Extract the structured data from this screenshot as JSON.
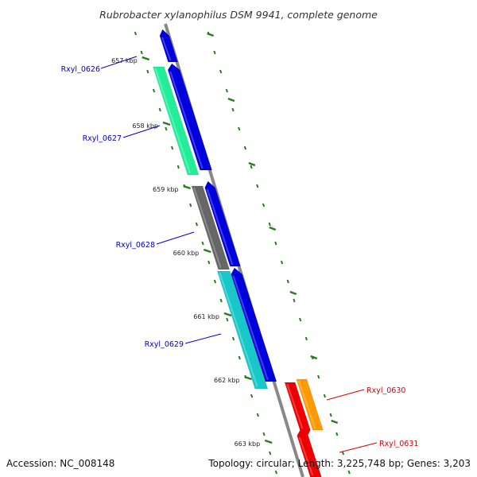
{
  "title": "Rubrobacter xylanophilus DSM 9941, complete genome",
  "footer": {
    "accession": "Accession: NC_008148",
    "topology": "Topology: circular; Length: 3,225,748 bp; Genes: 3,203"
  },
  "colors": {
    "backbone": "#888888",
    "tick_major": "#2a7a1e",
    "tick_minor": "#2a7a1e",
    "strand_forward": "#0000dd",
    "label_blue": "#0000cc",
    "label_red": "#dd0000"
  },
  "scale_ticks": [
    {
      "label": "657 kbp"
    },
    {
      "label": "658 kbp"
    },
    {
      "label": "659 kbp"
    },
    {
      "label": "660 kbp"
    },
    {
      "label": "661 kbp"
    },
    {
      "label": "662 kbp"
    },
    {
      "label": "663 kbp"
    }
  ],
  "gene_labels": [
    {
      "name": "Rxyl_0626",
      "color": "#0000cc"
    },
    {
      "name": "Rxyl_0627",
      "color": "#0000cc"
    },
    {
      "name": "Rxyl_0628",
      "color": "#0000cc"
    },
    {
      "name": "Rxyl_0629",
      "color": "#0000cc"
    },
    {
      "name": "Rxyl_0630",
      "color": "#dd0000"
    },
    {
      "name": "Rxyl_0631",
      "color": "#dd0000"
    }
  ],
  "features": [
    {
      "track": "forward-cds",
      "color": "#0000dd"
    },
    {
      "track": "forward-cds",
      "color": "#0000dd"
    },
    {
      "track": "forward-cds",
      "color": "#0000dd"
    },
    {
      "track": "forward-cds",
      "color": "#0000dd"
    },
    {
      "track": "gene-0627",
      "color": "#22ee99"
    },
    {
      "track": "gene-0628",
      "color": "#666666"
    },
    {
      "track": "gene-0629",
      "color": "#18c8c8"
    },
    {
      "track": "reverse-cds",
      "color": "#ee0000"
    },
    {
      "track": "reverse-cds",
      "color": "#ee0000"
    },
    {
      "track": "gene-0630",
      "color": "#ff9900"
    }
  ]
}
